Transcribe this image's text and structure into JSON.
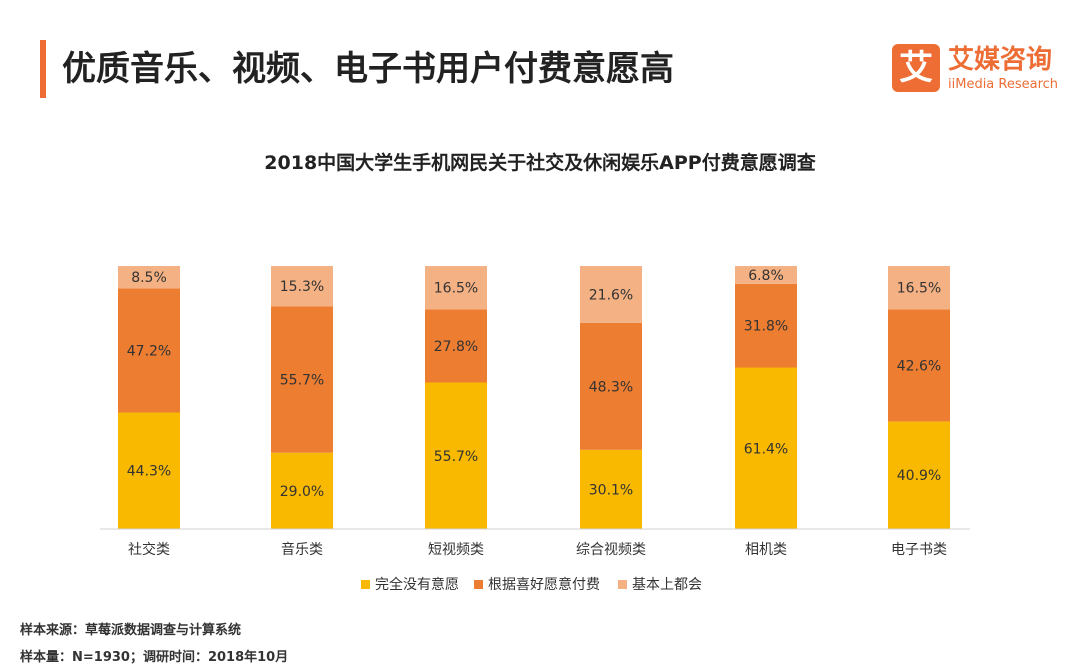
{
  "header": {
    "title": "优质音乐、视频、电子书用户付费意愿高",
    "accent_color": "#ed6d35"
  },
  "logo": {
    "mark": "艾",
    "name_cn": "艾媒咨询",
    "name_en": "iiMedia Research"
  },
  "chart_data": {
    "type": "bar",
    "stacked": true,
    "title": "2018中国大学生手机网民关于社交及休闲娱乐APP付费意愿调查",
    "categories": [
      "社交类",
      "音乐类",
      "短视频类",
      "综合视频类",
      "相机类",
      "电子书类"
    ],
    "series": [
      {
        "name": "完全没有意愿",
        "color": "#f8b900",
        "values": [
          44.3,
          29.0,
          55.7,
          30.1,
          61.4,
          40.9
        ],
        "labels": [
          "44.3%",
          "29.0%",
          "55.7%",
          "30.1%",
          "61.4%",
          "40.9%"
        ]
      },
      {
        "name": "根据喜好愿意付费",
        "color": "#ed7d31",
        "values": [
          47.2,
          55.7,
          27.8,
          48.3,
          31.8,
          42.6
        ],
        "labels": [
          "47.2%",
          "55.7%",
          "27.8%",
          "48.3%",
          "31.8%",
          "42.6%"
        ]
      },
      {
        "name": "基本上都会",
        "color": "#f4b183",
        "values": [
          8.5,
          15.3,
          16.5,
          21.6,
          6.8,
          16.5
        ],
        "labels": [
          "8.5%",
          "15.3%",
          "16.5%",
          "21.6%",
          "6.8%",
          "16.5%"
        ]
      }
    ],
    "ylim": [
      0,
      100
    ],
    "grid": false,
    "legend_position": "bottom"
  },
  "footer": {
    "source": "样本来源：草莓派数据调查与计算系统",
    "sample": "样本量：N=1930；调研时间：2018年10月"
  }
}
